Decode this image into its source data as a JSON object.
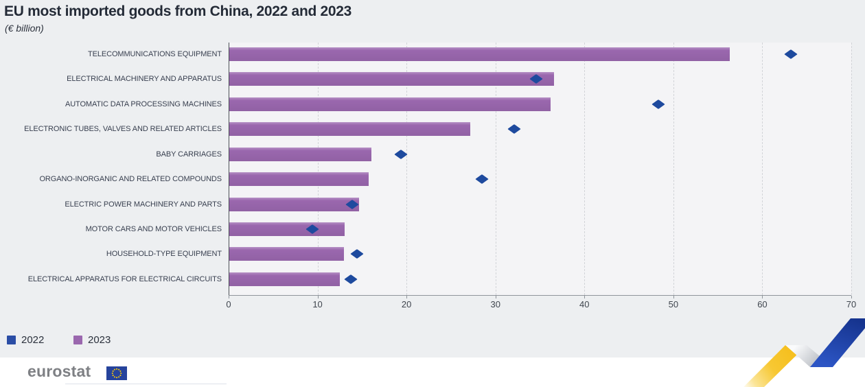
{
  "header": {
    "title": "EU most imported goods from China, 2022 and 2023",
    "subtitle": "(€ billion)"
  },
  "chart_data": {
    "type": "bar",
    "orientation": "horizontal",
    "title": "EU most imported goods from China, 2022 and 2023",
    "unit": "€ billion",
    "categories": [
      "TELECOMMUNICATIONS EQUIPMENT",
      "ELECTRICAL MACHINERY AND APPARATUS",
      "AUTOMATIC DATA PROCESSING MACHINES",
      "ELECTRONIC TUBES, VALVES AND RELATED ARTICLES",
      "BABY CARRIAGES",
      "ORGANO-INORGANIC AND RELATED COMPOUNDS",
      "ELECTRIC POWER MACHINERY AND PARTS",
      "MOTOR CARS AND MOTOR VEHICLES",
      "HOUSEHOLD-TYPE EQUIPMENT",
      "ELECTRICAL APPARATUS FOR ELECTRICAL CIRCUITS"
    ],
    "series": [
      {
        "name": "2022",
        "marker": "diamond",
        "color": "#1e4a9e",
        "values": [
          63.2,
          34.6,
          48.3,
          32.1,
          19.4,
          28.5,
          13.9,
          9.4,
          14.4,
          13.7
        ]
      },
      {
        "name": "2023",
        "marker": "bar",
        "color": "#9a67ae",
        "values": [
          56.3,
          36.5,
          36.1,
          27.1,
          16.0,
          15.7,
          14.6,
          13.0,
          12.9,
          12.4
        ]
      }
    ],
    "xlim": [
      0,
      70
    ],
    "xticks": [
      0,
      10,
      20,
      30,
      40,
      50,
      60,
      70
    ],
    "xlabel": "",
    "ylabel": "",
    "grid": "vertical-dashed",
    "legend_position": "bottom-left"
  },
  "legend": {
    "items": [
      {
        "label": "2022",
        "color": "#2a4da5"
      },
      {
        "label": "2023",
        "color": "#9a67ae"
      }
    ]
  },
  "footer": {
    "brand": "eurostat"
  },
  "colors": {
    "page_background": "#edeff1",
    "plot_background": "#f4f4f6",
    "title_text": "#242b37",
    "label_text": "#394050",
    "gridline": "#d2d4d8",
    "axis": "#8f959b",
    "ribbon_yellow": "#f5ba11",
    "ribbon_gray": "#b6bac1",
    "ribbon_blue": "#24469e",
    "flag_blue": "#26439c",
    "flag_stars": "#ffcc00"
  }
}
